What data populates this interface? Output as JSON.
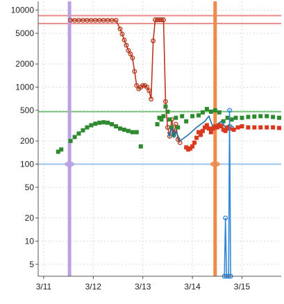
{
  "chart_data": {
    "type": "scatter",
    "title": "",
    "xlabel": "",
    "ylabel": "",
    "y_scale": "log",
    "ylim": [
      3.5,
      13000
    ],
    "xlim": [
      "3/10 21:20",
      "3/15 19:00"
    ],
    "grid": true,
    "y_ticks": [
      {
        "value": 10000,
        "label": "10000"
      },
      {
        "value": 5000,
        "label": "5000"
      },
      {
        "value": 2000,
        "label": "2000"
      },
      {
        "value": 1000,
        "label": "1000"
      },
      {
        "value": 500,
        "label": "500"
      },
      {
        "value": 200,
        "label": "200"
      },
      {
        "value": 100,
        "label": "100"
      },
      {
        "value": 50,
        "label": "50"
      },
      {
        "value": 20,
        "label": "20"
      },
      {
        "value": 10,
        "label": "10"
      },
      {
        "value": 5,
        "label": "5"
      }
    ],
    "x_ticks": [
      {
        "value": "3/11 00:00",
        "label": "3/11"
      },
      {
        "value": "3/12 00:00",
        "label": "3/12"
      },
      {
        "value": "3/13 00:00",
        "label": "3/13"
      },
      {
        "value": "3/14 00:00",
        "label": "3/14"
      },
      {
        "value": "3/15 00:00",
        "label": "3/15"
      }
    ],
    "reference_lines": [
      {
        "axis": "y",
        "value": 8500,
        "color": "#e88a8a"
      },
      {
        "axis": "y",
        "value": 6700,
        "color": "#e88a8a"
      },
      {
        "axis": "y",
        "value": 480,
        "color": "#7bc47b"
      },
      {
        "axis": "y",
        "value": 100,
        "color": "#9cc4ee"
      },
      {
        "axis": "x",
        "value": "3/11 12:30",
        "color": "#b9a1e3"
      },
      {
        "axis": "x",
        "value": "3/14 11:00",
        "color": "#ee8a4a"
      }
    ],
    "series": [
      {
        "color": "#b5391e",
        "marker": "circle",
        "connect": true,
        "points": [
          [
            "3/11 13:00",
            7400
          ],
          [
            "3/11 15:00",
            7400
          ],
          [
            "3/11 17:00",
            7400
          ],
          [
            "3/11 19:00",
            7400
          ],
          [
            "3/11 21:00",
            7400
          ],
          [
            "3/11 23:00",
            7400
          ],
          [
            "3/12 01:00",
            7400
          ],
          [
            "3/12 03:00",
            7400
          ],
          [
            "3/12 05:00",
            7400
          ],
          [
            "3/12 07:00",
            7400
          ],
          [
            "3/12 09:00",
            7400
          ],
          [
            "3/12 11:00",
            7400
          ],
          [
            "3/12 13:00",
            5700
          ],
          [
            "3/12 14:00",
            4900
          ],
          [
            "3/12 15:00",
            4100
          ],
          [
            "3/12 16:00",
            3500
          ],
          [
            "3/12 17:00",
            3000
          ],
          [
            "3/12 18:00",
            2700
          ],
          [
            "3/12 19:00",
            2400
          ],
          [
            "3/12 20:00",
            1600
          ],
          [
            "3/12 21:00",
            1050
          ],
          [
            "3/12 22:00",
            950
          ],
          [
            "3/12 23:00",
            1000
          ],
          [
            "3/13 00:00",
            1050
          ],
          [
            "3/13 01:00",
            1050
          ],
          [
            "3/13 02:00",
            1000
          ],
          [
            "3/13 03:00",
            900
          ],
          [
            "3/13 04:00",
            700
          ],
          [
            "3/13 05:00",
            4000
          ],
          [
            "3/13 06:00",
            7500
          ],
          [
            "3/13 07:00",
            7500
          ],
          [
            "3/13 08:00",
            7500
          ],
          [
            "3/13 09:00",
            7500
          ],
          [
            "3/13 10:00",
            7500
          ],
          [
            "3/13 11:00",
            650
          ],
          [
            "3/13 12:00",
            300
          ],
          [
            "3/13 13:00",
            230
          ],
          [
            "3/13 14:00",
            380
          ],
          [
            "3/13 15:00",
            250
          ],
          [
            "3/13 16:00",
            330
          ],
          [
            "3/13 17:00",
            210
          ],
          [
            "3/13 18:00",
            190
          ]
        ]
      },
      {
        "color": "#2f8a2f",
        "marker": "square",
        "connect": false,
        "points": [
          [
            "3/11 07:00",
            145
          ],
          [
            "3/11 08:30",
            155
          ],
          [
            "3/11 13:00",
            200
          ],
          [
            "3/11 15:00",
            225
          ],
          [
            "3/11 17:00",
            250
          ],
          [
            "3/11 19:00",
            275
          ],
          [
            "3/11 21:00",
            300
          ],
          [
            "3/11 23:00",
            320
          ],
          [
            "3/12 01:00",
            335
          ],
          [
            "3/12 03:00",
            345
          ],
          [
            "3/12 05:00",
            350
          ],
          [
            "3/12 07:00",
            345
          ],
          [
            "3/12 09:00",
            330
          ],
          [
            "3/12 11:00",
            310
          ],
          [
            "3/12 13:00",
            290
          ],
          [
            "3/12 15:00",
            280
          ],
          [
            "3/12 17:00",
            270
          ],
          [
            "3/12 19:00",
            260
          ],
          [
            "3/12 21:00",
            260
          ],
          [
            "3/12 23:00",
            170
          ],
          [
            "3/13 07:00",
            330
          ],
          [
            "3/13 08:00",
            400
          ],
          [
            "3/13 09:00",
            380
          ],
          [
            "3/13 10:00",
            420
          ],
          [
            "3/13 11:00",
            560
          ],
          [
            "3/13 12:00",
            480
          ],
          [
            "3/13 13:00",
            380
          ],
          [
            "3/13 14:00",
            300
          ],
          [
            "3/13 15:00",
            240
          ],
          [
            "3/13 16:00",
            400
          ],
          [
            "3/13 17:00",
            300
          ],
          [
            "3/13 19:00",
            420
          ],
          [
            "3/13 21:00",
            360
          ],
          [
            "3/14 00:00",
            420
          ],
          [
            "3/14 03:00",
            430
          ],
          [
            "3/14 05:00",
            470
          ],
          [
            "3/14 07:00",
            520
          ],
          [
            "3/14 09:00",
            480
          ],
          [
            "3/14 11:00",
            500
          ],
          [
            "3/14 13:00",
            470
          ],
          [
            "3/14 15:00",
            360
          ],
          [
            "3/14 17:00",
            400
          ],
          [
            "3/14 19:00",
            380
          ],
          [
            "3/14 21:00",
            400
          ],
          [
            "3/15 00:00",
            400
          ],
          [
            "3/15 03:00",
            410
          ],
          [
            "3/15 06:00",
            415
          ],
          [
            "3/15 09:00",
            420
          ],
          [
            "3/15 12:00",
            420
          ],
          [
            "3/15 15:00",
            410
          ],
          [
            "3/15 18:00",
            400
          ]
        ]
      },
      {
        "color": "#1e6fa8",
        "marker": "none",
        "connect": true,
        "points": [
          [
            "3/13 12:00",
            260
          ],
          [
            "3/13 13:00",
            230
          ],
          [
            "3/13 14:00",
            300
          ],
          [
            "3/13 15:00",
            220
          ],
          [
            "3/13 16:00",
            270
          ],
          [
            "3/13 18:00",
            200
          ],
          [
            "3/13 22:00",
            240
          ],
          [
            "3/14 02:00",
            300
          ],
          [
            "3/14 06:00",
            360
          ],
          [
            "3/14 08:00",
            420
          ],
          [
            "3/14 10:00",
            300
          ],
          [
            "3/14 12:00",
            330
          ],
          [
            "3/14 14:00",
            360
          ],
          [
            "3/14 16:00",
            300
          ],
          [
            "3/14 18:00",
            330
          ],
          [
            "3/14 20:00",
            300
          ]
        ]
      },
      {
        "color": "#d9381e",
        "marker": "square",
        "connect": false,
        "points": [
          [
            "3/13 21:00",
            165
          ],
          [
            "3/13 22:00",
            155
          ],
          [
            "3/13 23:00",
            160
          ],
          [
            "3/14 00:00",
            170
          ],
          [
            "3/14 01:00",
            190
          ],
          [
            "3/14 02:00",
            220
          ],
          [
            "3/14 03:00",
            260
          ],
          [
            "3/14 04:00",
            240
          ],
          [
            "3/14 05:00",
            270
          ],
          [
            "3/14 06:00",
            300
          ],
          [
            "3/14 07:00",
            320
          ],
          [
            "3/14 08:00",
            290
          ],
          [
            "3/14 09:00",
            260
          ],
          [
            "3/14 10:00",
            290
          ],
          [
            "3/14 11:00",
            310
          ],
          [
            "3/14 12:00",
            300
          ],
          [
            "3/14 13:00",
            320
          ],
          [
            "3/14 14:00",
            310
          ],
          [
            "3/14 15:00",
            280
          ],
          [
            "3/14 16:00",
            270
          ],
          [
            "3/14 17:00",
            300
          ],
          [
            "3/14 18:00",
            290
          ],
          [
            "3/14 20:00",
            280
          ],
          [
            "3/14 22:00",
            300
          ],
          [
            "3/15 00:00",
            310
          ],
          [
            "3/15 03:00",
            300
          ],
          [
            "3/15 06:00",
            300
          ],
          [
            "3/15 09:00",
            300
          ],
          [
            "3/15 12:00",
            300
          ],
          [
            "3/15 15:00",
            300
          ],
          [
            "3/15 18:00",
            295
          ]
        ]
      },
      {
        "color": "#2f86d6",
        "marker": "circle",
        "connect": true,
        "points": [
          [
            "3/14 15:30",
            3.5
          ],
          [
            "3/14 16:00",
            20
          ],
          [
            "3/14 16:30",
            3.5
          ],
          [
            "3/14 17:30",
            3.5
          ],
          [
            "3/14 18:00",
            500
          ],
          [
            "3/14 18:30",
            3.5
          ]
        ]
      }
    ]
  }
}
